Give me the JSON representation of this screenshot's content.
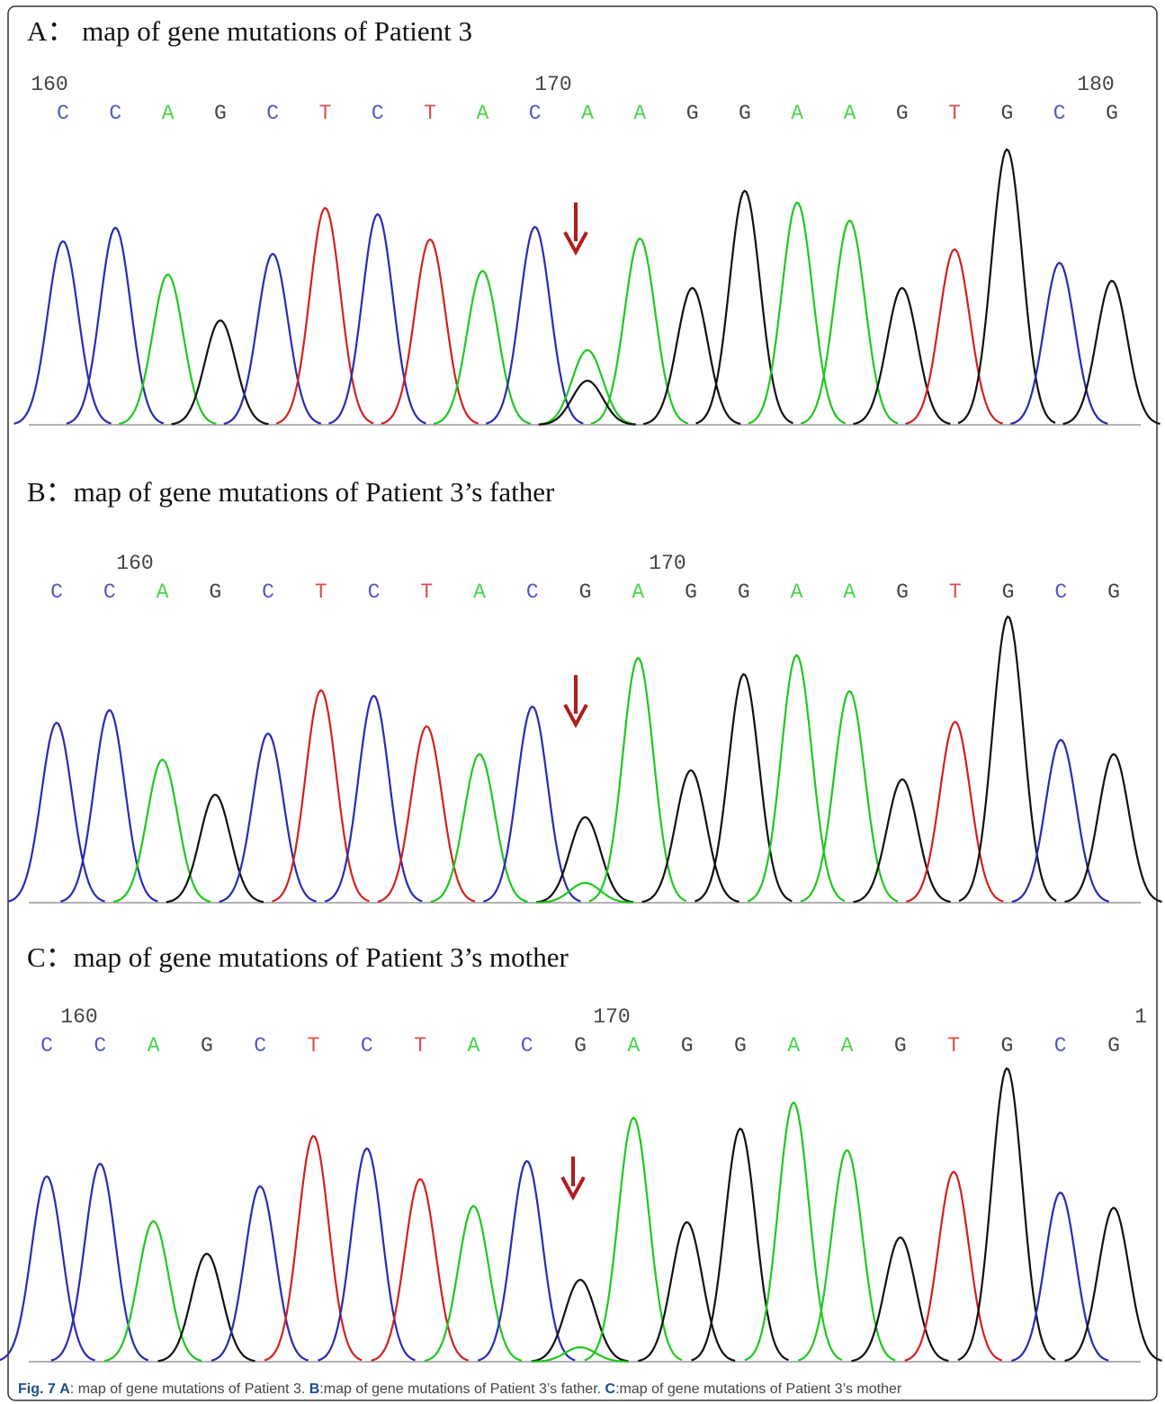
{
  "base_colors": {
    "A": "#1fc81f",
    "C": "#2a2ab4",
    "G": "#111111",
    "T": "#d42020"
  },
  "panels": [
    {
      "title": "A：  map of gene mutations of Patient 3",
      "ruler": [
        160,
        170,
        180
      ],
      "bases": [
        "C",
        "C",
        "A",
        "G",
        "C",
        "T",
        "C",
        "T",
        "A",
        "C",
        "A",
        "A",
        "G",
        "G",
        "A",
        "A",
        "G",
        "T",
        "G",
        "C",
        "G"
      ],
      "heights": [
        204,
        219,
        167,
        116,
        190,
        241,
        234,
        206,
        171,
        220,
        83,
        207,
        152,
        260,
        247,
        227,
        152,
        195,
        306,
        180,
        160
      ],
      "secondary_peaks": [
        {
          "at": 10,
          "base": "G",
          "height": 49
        }
      ]
    },
    {
      "title": "B：map of gene mutations of Patient 3’s father",
      "ruler": [
        160,
        170
      ],
      "bases": [
        "C",
        "C",
        "A",
        "G",
        "C",
        "T",
        "C",
        "T",
        "A",
        "C",
        "G",
        "A",
        "G",
        "G",
        "A",
        "A",
        "G",
        "T",
        "G",
        "C",
        "G"
      ],
      "heights": [
        200,
        214,
        159,
        120,
        188,
        236,
        230,
        196,
        165,
        218,
        95,
        272,
        147,
        254,
        275,
        235,
        137,
        201,
        318,
        181,
        165
      ],
      "secondary_peaks": [
        {
          "at": 10,
          "base": "A",
          "height": 22
        }
      ]
    },
    {
      "title": "C：map of gene mutations of Patient 3’s mother",
      "ruler": [
        160,
        170,
        1
      ],
      "bases": [
        "C",
        "C",
        "A",
        "G",
        "C",
        "T",
        "C",
        "T",
        "A",
        "C",
        "G",
        "A",
        "G",
        "G",
        "A",
        "A",
        "G",
        "T",
        "G",
        "C",
        "G"
      ],
      "heights": [
        206,
        220,
        156,
        120,
        195,
        251,
        237,
        203,
        173,
        223,
        91,
        271,
        155,
        259,
        288,
        235,
        138,
        211,
        326,
        188,
        171
      ],
      "secondary_peaks": [
        {
          "at": 10,
          "base": "A",
          "height": 16
        }
      ]
    }
  ],
  "caption": {
    "fig": "Fig. 7",
    "parts": [
      {
        "label": "A",
        "text": ": map of gene mutations of Patient 3. "
      },
      {
        "label": "B",
        "text": ":map of gene mutations of Patient 3’s father. "
      },
      {
        "label": "C",
        "text": ":map of gene mutations of Patient 3’s mother"
      }
    ]
  }
}
